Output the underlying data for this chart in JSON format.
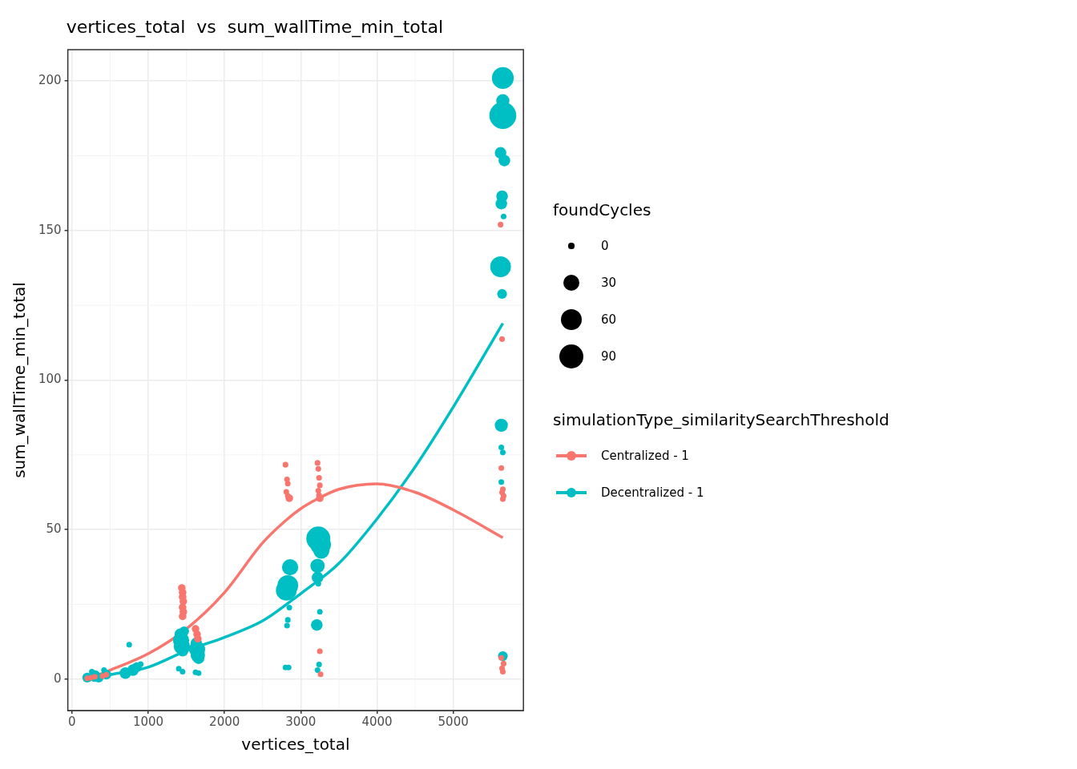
{
  "chart_data": {
    "type": "bubble",
    "title": "vertices_total  vs  sum_wallTime_min_total",
    "xlabel": "vertices_total",
    "ylabel": "sum_wallTime_min_total",
    "legend_title": "simulationType_similaritySearchThreshold",
    "annotations": [
      "foundCycles"
    ],
    "size_legend": [
      {
        "value": 5,
        "label": "0"
      },
      {
        "value": 41,
        "label": "30"
      },
      {
        "value": 67,
        "label": "60"
      },
      {
        "value": 90,
        "label": "90"
      }
    ],
    "xlim": [
      -55,
      5920
    ],
    "ylim": [
      -10.5,
      210.5
    ],
    "xticks": [
      0,
      1000,
      2000,
      3000,
      4000,
      5000
    ],
    "yticks": [
      0,
      50,
      100,
      150,
      200
    ],
    "grid": true,
    "legend": "right",
    "series": [
      {
        "name": "Centralized - 1",
        "color": "#f8766d",
        "marker": "circle",
        "x": [
          200,
          250,
          300,
          400,
          450,
          1440,
          1450,
          1450,
          1460,
          1450,
          1460,
          1450,
          1620,
          1640,
          1650,
          2800,
          2820,
          2830,
          2810,
          2830,
          2850,
          3220,
          3230,
          3240,
          3250,
          3230,
          3240,
          3250,
          3250,
          3260,
          5620,
          5640,
          5630,
          5650,
          5640,
          5660,
          5650,
          5630,
          5660,
          5640,
          5650
        ],
        "values": [
          0.3,
          0.5,
          0.8,
          1,
          1.5,
          30.5,
          29,
          27.5,
          26,
          24,
          22.5,
          21,
          16.8,
          15,
          13.5,
          71.7,
          66.8,
          65.4,
          62.6,
          61.3,
          60.5,
          72.3,
          70.3,
          67.3,
          64.8,
          63,
          61.5,
          60.5,
          9.3,
          1.6,
          152,
          113.7,
          70.6,
          63.5,
          62.4,
          61.3,
          60.2,
          7.1,
          5.2,
          3.6,
          2.5
        ],
        "sizes": [
          5,
          5,
          5,
          5,
          5,
          9,
          9,
          9,
          9,
          9,
          9,
          9,
          9,
          9,
          9,
          5,
          5,
          5,
          5,
          5,
          9,
          5,
          5,
          5,
          5,
          5,
          5,
          9,
          5,
          5,
          5,
          5,
          5,
          5,
          5,
          5,
          5,
          5,
          5,
          5,
          5
        ]
      },
      {
        "name": "Decentralized - 1",
        "color": "#00bfc4",
        "marker": "circle",
        "x": [
          200,
          260,
          300,
          350,
          420,
          450,
          700,
          750,
          800,
          850,
          900,
          1400,
          1450,
          1420,
          1430,
          1440,
          1450,
          1470,
          1620,
          1660,
          1630,
          1640,
          1650,
          1660,
          2800,
          2840,
          2820,
          2830,
          2850,
          2810,
          2830,
          2860,
          3220,
          3240,
          3210,
          3250,
          3230,
          3220,
          3220,
          3270,
          3260,
          3230,
          5650,
          5630,
          5650,
          5630,
          5630,
          5640,
          5620,
          5660,
          5630,
          5640,
          5670,
          5620,
          5650,
          5650,
          5650
        ],
        "values": [
          0.5,
          2.5,
          1,
          0.5,
          3,
          1.5,
          2,
          11.5,
          3,
          4,
          5,
          3.5,
          2.5,
          15,
          13,
          11,
          9.5,
          16,
          2.3,
          2,
          12,
          10,
          8,
          7,
          3.9,
          3.9,
          17.9,
          19.8,
          23.9,
          29.7,
          31.3,
          37.4,
          3,
          4.9,
          18.1,
          22.5,
          31.9,
          34,
          37.9,
          43,
          45,
          47,
          7.7,
          65.9,
          75.8,
          77.5,
          84.9,
          128.8,
          137.9,
          154.7,
          159,
          161.5,
          173.4,
          176,
          188.5,
          193.4,
          201
        ],
        "sizes": [
          15,
          5,
          21,
          15,
          5,
          15,
          21,
          5,
          21,
          15,
          5,
          5,
          5,
          21,
          41,
          41,
          21,
          15,
          5,
          5,
          21,
          41,
          32,
          21,
          5,
          5,
          5,
          5,
          5,
          67,
          67,
          41,
          5,
          5,
          21,
          5,
          5,
          21,
          32,
          41,
          67,
          90,
          15,
          5,
          5,
          5,
          27,
          15,
          67,
          5,
          21,
          21,
          21,
          21,
          113,
          27,
          74
        ]
      },
      {
        "color": "#f8766d",
        "type": "line",
        "marker": "none",
        "x": [
          200,
          500,
          1000,
          1500,
          2000,
          2500,
          2800,
          3000,
          3200,
          3500,
          4000,
          4500,
          5000,
          5650
        ],
        "values": [
          0,
          3,
          8.5,
          16.8,
          29,
          45.6,
          53,
          57,
          60,
          63.5,
          65.3,
          62.5,
          56.6,
          47.3
        ]
      },
      {
        "color": "#00bfc4",
        "type": "line",
        "marker": "none",
        "x": [
          200,
          500,
          1000,
          1500,
          2000,
          2500,
          3000,
          3500,
          4000,
          4500,
          5000,
          5650
        ],
        "values": [
          0,
          1.5,
          4,
          9.5,
          14,
          19.5,
          28.6,
          38.7,
          53.6,
          71,
          91,
          119
        ]
      }
    ]
  }
}
